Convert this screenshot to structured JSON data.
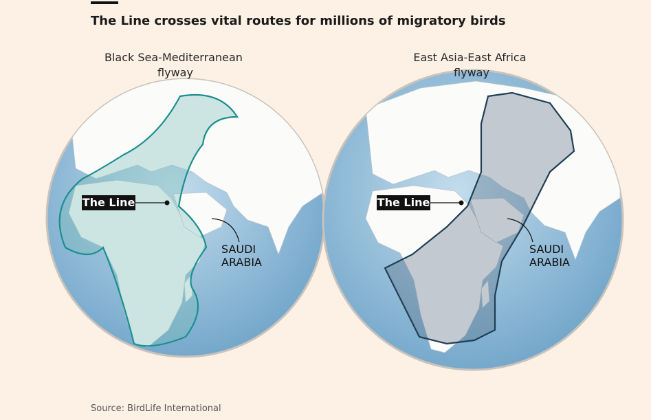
{
  "header": {
    "title": "The Line crosses vital routes for millions of migratory birds"
  },
  "panels": [
    {
      "title_lines": [
        "Black Sea-Mediterranean",
        "flyway"
      ],
      "line_label": "The Line",
      "country_label_lines": [
        "SAUDI",
        "ARABIA"
      ]
    },
    {
      "title_lines": [
        "East Asia-East Africa",
        "flyway"
      ],
      "line_label": "The Line",
      "country_label_lines": [
        "SAUDI",
        "ARABIA"
      ]
    }
  ],
  "footer": {
    "source": "Source: BirdLife International"
  }
}
